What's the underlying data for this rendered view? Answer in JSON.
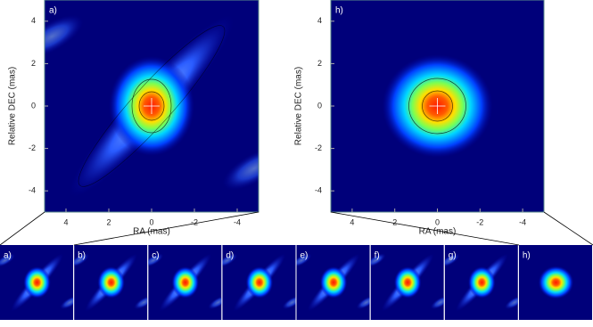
{
  "chart_data": [
    {
      "type": "image",
      "panel_label": "a)",
      "xlabel": "RA (mas)",
      "ylabel": "Relative DEC (mas)",
      "xlim": [
        5,
        -5
      ],
      "ylim": [
        -5,
        5
      ],
      "xticks": [
        4,
        2,
        0,
        -2,
        -4
      ],
      "yticks": [
        -4,
        -2,
        0,
        2,
        4
      ]
    },
    {
      "type": "image",
      "panel_label": "h)",
      "xlabel": "RA (mas)",
      "ylabel": "Relative DEC (mas)",
      "xlim": [
        5,
        -5
      ],
      "ylim": [
        -5,
        5
      ],
      "xticks": [
        4,
        2,
        0,
        -2,
        -4
      ],
      "yticks": [
        -4,
        -2,
        0,
        2,
        4
      ]
    }
  ],
  "thumbnails": {
    "labels": [
      "a)",
      "b)",
      "c)",
      "d)",
      "e)",
      "f)",
      "g)",
      "h)"
    ]
  }
}
